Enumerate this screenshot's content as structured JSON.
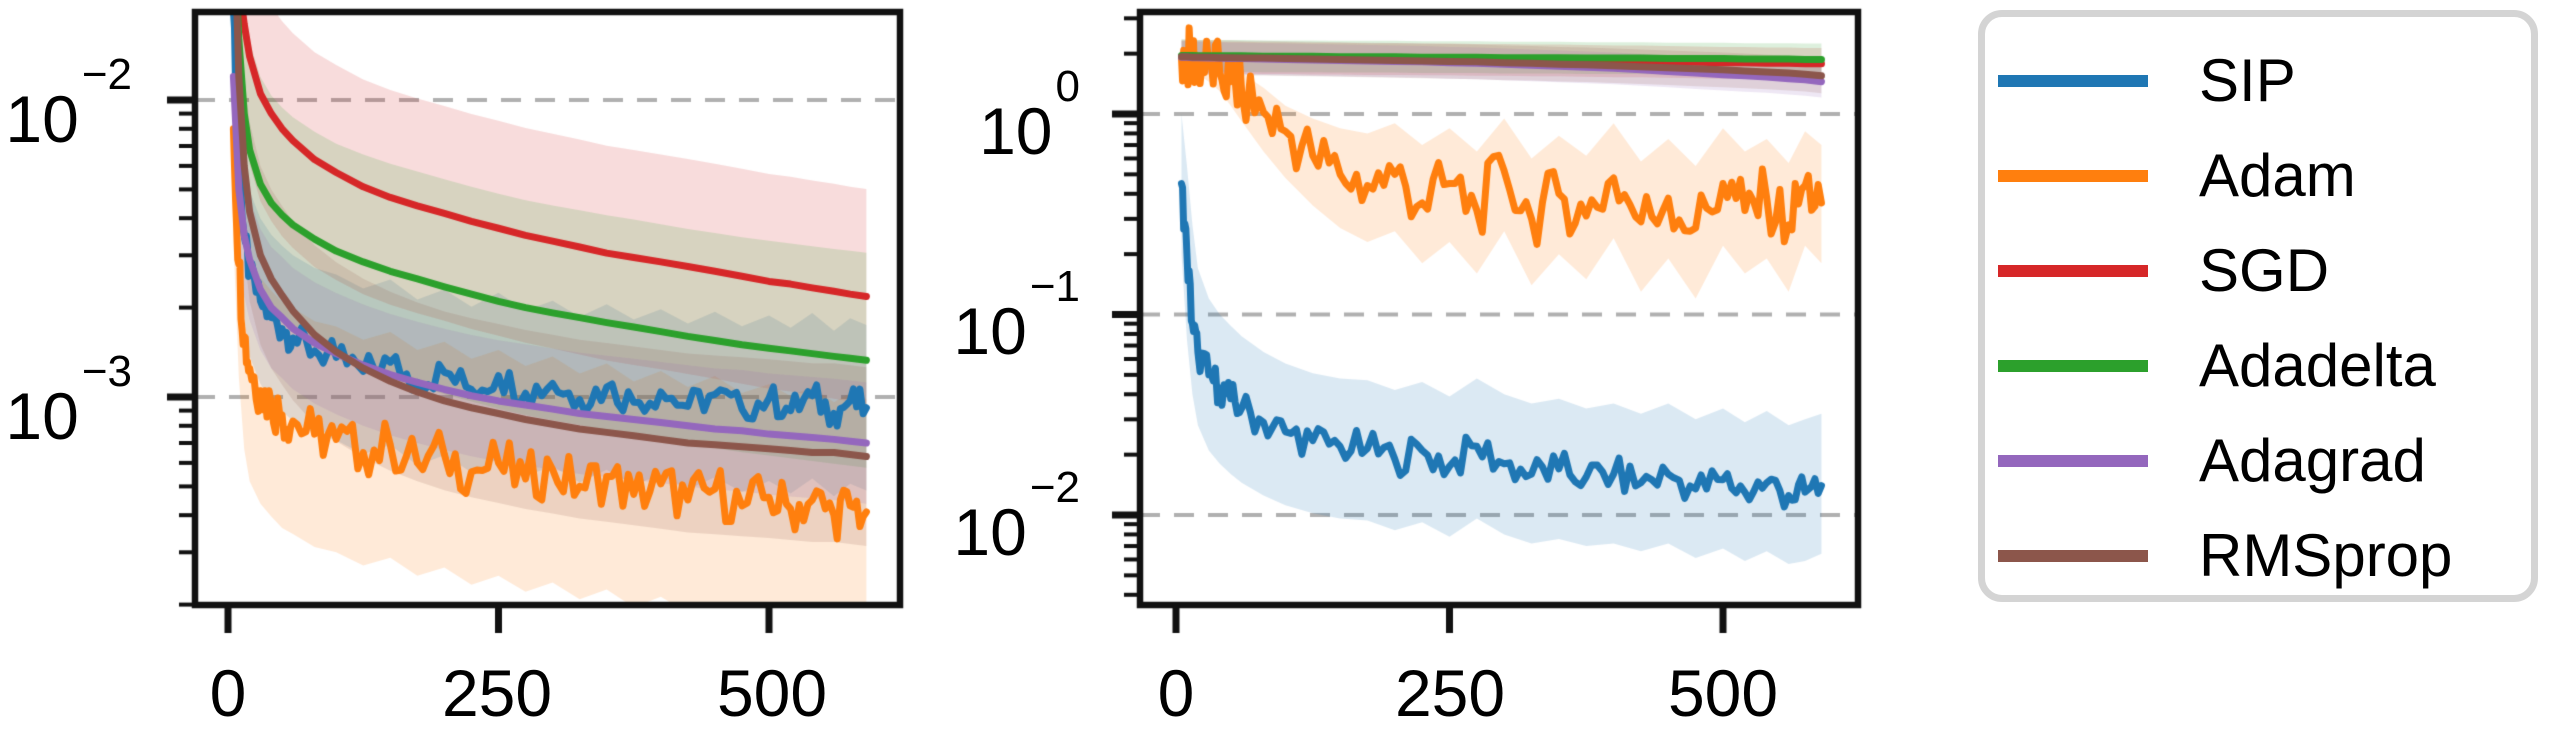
{
  "figure": {
    "background": "#ffffff",
    "grid_color": "#b0b0b0",
    "spine_color": "#111111",
    "text_color": "#000000"
  },
  "chart_data": {
    "type": "line",
    "layout": "two-log-subplots-with-shared-legend",
    "legend": {
      "position": "right",
      "entries": [
        {
          "label": "SIP",
          "color": "#1f77b4"
        },
        {
          "label": "Adam",
          "color": "#ff7f0e"
        },
        {
          "label": "SGD",
          "color": "#d62728"
        },
        {
          "label": "Adadelta",
          "color": "#2ca02c"
        },
        {
          "label": "Adagrad",
          "color": "#9467bd"
        },
        {
          "label": "RMSprop",
          "color": "#8c564b"
        }
      ]
    },
    "plots": [
      {
        "id": "left",
        "yscale": "log",
        "xlabel": "",
        "ylabel": "",
        "xlim": [
          -30,
          617
        ],
        "ylim": [
          0.0002,
          0.0198
        ],
        "grid": "horizontal-dashed-at-decades",
        "xticks": [
          {
            "label": "0",
            "value": 0
          },
          {
            "label": "250",
            "value": 250
          },
          {
            "label": "500",
            "value": 500
          }
        ],
        "yticks": [
          {
            "base": "10",
            "exp": "−2",
            "value": 0.01
          },
          {
            "base": "10",
            "exp": "−3",
            "value": 0.001
          }
        ],
        "x": [
          5,
          10,
          15,
          20,
          30,
          40,
          50,
          60,
          80,
          100,
          125,
          150,
          175,
          200,
          225,
          250,
          275,
          300,
          325,
          350,
          375,
          400,
          425,
          450,
          475,
          500,
          520,
          540,
          560,
          575,
          590
        ],
        "series": [
          {
            "name": "SIP",
            "color": "#1f77b4",
            "band_factor": 1.9,
            "noise": 0.06,
            "values": [
              0.02,
              0.006,
              0.0035,
              0.0026,
              0.0021,
              0.00185,
              0.0017,
              0.00158,
              0.00143,
              0.00136,
              0.00122,
              0.00131,
              0.00112,
              0.00121,
              0.00106,
              0.00118,
              0.00103,
              0.00111,
              0.00098,
              0.00108,
              0.00096,
              0.00104,
              0.00093,
              0.00102,
              0.00091,
              0.00099,
              0.0009,
              0.00101,
              0.00088,
              0.00097,
              0.00092
            ]
          },
          {
            "name": "Adam",
            "color": "#ff7f0e",
            "band_factor": 2.4,
            "noise": 0.1,
            "values": [
              0.008,
              0.0028,
              0.0016,
              0.00125,
              0.00105,
              0.00095,
              0.00087,
              0.00083,
              0.00075,
              0.00072,
              0.00065,
              0.00069,
              0.0006,
              0.00064,
              0.00056,
              0.0006,
              0.00053,
              0.00057,
              0.0005,
              0.00054,
              0.00047,
              0.00051,
              0.00045,
              0.00049,
              0.00043,
              0.00046,
              0.00042,
              0.00045,
              0.0004,
              0.00043,
              0.00041
            ]
          },
          {
            "name": "SGD",
            "color": "#d62728",
            "band_factor": 2.3,
            "noise": 0,
            "values": [
              0.05,
              0.025,
              0.018,
              0.014,
              0.0105,
              0.009,
              0.008,
              0.0073,
              0.0063,
              0.0057,
              0.0051,
              0.0047,
              0.0044,
              0.00415,
              0.0039,
              0.0037,
              0.0035,
              0.00335,
              0.0032,
              0.00305,
              0.00295,
              0.00285,
              0.00275,
              0.00265,
              0.00255,
              0.00245,
              0.0024,
              0.00233,
              0.00227,
              0.00222,
              0.00218
            ]
          },
          {
            "name": "Adadelta",
            "color": "#2ca02c",
            "band_factor": 2.3,
            "noise": 0,
            "values": [
              0.04,
              0.016,
              0.009,
              0.0068,
              0.0052,
              0.0045,
              0.0041,
              0.0038,
              0.0034,
              0.0031,
              0.00285,
              0.00265,
              0.0025,
              0.00235,
              0.00222,
              0.0021,
              0.002,
              0.00192,
              0.00185,
              0.00178,
              0.00172,
              0.00166,
              0.0016,
              0.00155,
              0.0015,
              0.00146,
              0.00143,
              0.0014,
              0.00137,
              0.00135,
              0.00133
            ]
          },
          {
            "name": "Adagrad",
            "color": "#9467bd",
            "band_factor": 1.6,
            "noise": 0,
            "values": [
              0.012,
              0.005,
              0.0035,
              0.0029,
              0.0023,
              0.002,
              0.00185,
              0.0017,
              0.00152,
              0.0014,
              0.00128,
              0.00119,
              0.00112,
              0.00106,
              0.00101,
              0.00097,
              0.00094,
              0.00091,
              0.00088,
              0.00086,
              0.00084,
              0.00082,
              0.0008,
              0.00078,
              0.00077,
              0.00075,
              0.00074,
              0.00073,
              0.00072,
              0.00071,
              0.0007
            ]
          },
          {
            "name": "RMSprop",
            "color": "#8c564b",
            "band_factor": 2.0,
            "noise": 0,
            "values": [
              0.05,
              0.012,
              0.006,
              0.0042,
              0.003,
              0.0025,
              0.0022,
              0.00195,
              0.00162,
              0.00142,
              0.00125,
              0.00113,
              0.00104,
              0.00097,
              0.00092,
              0.00088,
              0.00084,
              0.00081,
              0.00078,
              0.00076,
              0.00074,
              0.00072,
              0.0007,
              0.00069,
              0.00068,
              0.00067,
              0.00066,
              0.00065,
              0.00065,
              0.00064,
              0.00063
            ]
          }
        ]
      },
      {
        "id": "right",
        "yscale": "log",
        "xlabel": "",
        "ylabel": "",
        "xlim": [
          -33,
          623
        ],
        "ylim": [
          0.00356,
          3.23
        ],
        "grid": "horizontal-dashed-at-decades",
        "xticks": [
          {
            "label": "0",
            "value": 0
          },
          {
            "label": "250",
            "value": 250
          },
          {
            "label": "500",
            "value": 500
          }
        ],
        "yticks": [
          {
            "base": "10",
            "exp": "0",
            "value": 1
          },
          {
            "base": "10",
            "exp": "−1",
            "value": 0.1
          },
          {
            "base": "10",
            "exp": "−2",
            "value": 0.01
          }
        ],
        "x": [
          5,
          10,
          15,
          20,
          30,
          40,
          50,
          60,
          80,
          100,
          125,
          150,
          175,
          200,
          225,
          250,
          275,
          300,
          325,
          350,
          375,
          400,
          425,
          450,
          475,
          500,
          520,
          540,
          560,
          575,
          590
        ],
        "series": [
          {
            "name": "SIP",
            "color": "#1f77b4",
            "noise": 0.1,
            "values": [
              0.45,
              0.2,
              0.09,
              0.065,
              0.05,
              0.043,
              0.038,
              0.034,
              0.029,
              0.026,
              0.0235,
              0.022,
              0.0215,
              0.019,
              0.021,
              0.0175,
              0.022,
              0.018,
              0.016,
              0.017,
              0.0155,
              0.016,
              0.0145,
              0.016,
              0.0135,
              0.015,
              0.013,
              0.0145,
              0.0125,
              0.013,
              0.014
            ],
            "band_hi": [
              1.0,
              0.55,
              0.28,
              0.17,
              0.12,
              0.1,
              0.088,
              0.078,
              0.065,
              0.057,
              0.051,
              0.048,
              0.047,
              0.042,
              0.046,
              0.039,
              0.048,
              0.04,
              0.036,
              0.038,
              0.034,
              0.036,
              0.032,
              0.036,
              0.03,
              0.034,
              0.029,
              0.033,
              0.028,
              0.03,
              0.032
            ],
            "band_lo": [
              0.2,
              0.075,
              0.04,
              0.028,
              0.021,
              0.018,
              0.016,
              0.0145,
              0.0125,
              0.0112,
              0.0102,
              0.0096,
              0.0094,
              0.0084,
              0.0092,
              0.0078,
              0.0096,
              0.008,
              0.0072,
              0.0076,
              0.007,
              0.0072,
              0.0066,
              0.0072,
              0.0061,
              0.0068,
              0.0059,
              0.0066,
              0.0057,
              0.0059,
              0.0064
            ]
          },
          {
            "name": "Adam",
            "color": "#ff7f0e",
            "noise": 0.18,
            "values": [
              1.92,
              1.9,
              1.87,
              1.83,
              1.73,
              1.6,
              1.45,
              1.3,
              1.02,
              0.82,
              0.62,
              0.5,
              0.44,
              0.5,
              0.36,
              0.45,
              0.33,
              0.52,
              0.3,
              0.4,
              0.31,
              0.48,
              0.29,
              0.38,
              0.27,
              0.45,
              0.33,
              0.38,
              0.28,
              0.44,
              0.36
            ],
            "band_hi": [
              2.15,
              2.12,
              2.1,
              2.05,
              1.95,
              1.85,
              1.75,
              1.6,
              1.35,
              1.1,
              0.95,
              0.85,
              0.8,
              0.9,
              0.7,
              0.85,
              0.65,
              0.95,
              0.6,
              0.78,
              0.62,
              0.9,
              0.58,
              0.75,
              0.55,
              0.85,
              0.65,
              0.75,
              0.57,
              0.82,
              0.7
            ],
            "band_lo": [
              1.7,
              1.68,
              1.63,
              1.58,
              1.45,
              1.3,
              1.1,
              0.92,
              0.65,
              0.48,
              0.35,
              0.27,
              0.23,
              0.26,
              0.18,
              0.23,
              0.16,
              0.26,
              0.14,
              0.2,
              0.15,
              0.24,
              0.13,
              0.19,
              0.12,
              0.22,
              0.16,
              0.19,
              0.13,
              0.22,
              0.18
            ]
          },
          {
            "name": "SGD",
            "color": "#d62728",
            "band_factor": 1.2,
            "noise": 0,
            "values": [
              1.93,
              1.93,
              1.92,
              1.92,
              1.92,
              1.91,
              1.91,
              1.91,
              1.9,
              1.9,
              1.89,
              1.89,
              1.88,
              1.88,
              1.87,
              1.87,
              1.86,
              1.86,
              1.85,
              1.85,
              1.84,
              1.83,
              1.83,
              1.82,
              1.81,
              1.8,
              1.8,
              1.79,
              1.79,
              1.78,
              1.78
            ]
          },
          {
            "name": "Adadelta",
            "color": "#2ca02c",
            "band_factor": 1.2,
            "noise": 0,
            "values": [
              1.96,
              1.96,
              1.96,
              1.95,
              1.95,
              1.95,
              1.95,
              1.95,
              1.94,
              1.94,
              1.94,
              1.93,
              1.93,
              1.93,
              1.92,
              1.92,
              1.92,
              1.91,
              1.91,
              1.91,
              1.9,
              1.9,
              1.9,
              1.89,
              1.89,
              1.89,
              1.88,
              1.88,
              1.88,
              1.87,
              1.87
            ]
          },
          {
            "name": "Adagrad",
            "color": "#9467bd",
            "band_factor": 1.2,
            "noise": 0,
            "values": [
              1.92,
              1.92,
              1.91,
              1.91,
              1.9,
              1.9,
              1.89,
              1.89,
              1.88,
              1.87,
              1.86,
              1.85,
              1.84,
              1.83,
              1.82,
              1.8,
              1.79,
              1.77,
              1.75,
              1.73,
              1.71,
              1.69,
              1.66,
              1.63,
              1.6,
              1.57,
              1.55,
              1.53,
              1.5,
              1.48,
              1.45
            ]
          },
          {
            "name": "RMSprop",
            "color": "#8c564b",
            "band_factor": 1.22,
            "noise": 0,
            "values": [
              1.93,
              1.93,
              1.92,
              1.92,
              1.92,
              1.91,
              1.91,
              1.9,
              1.9,
              1.89,
              1.88,
              1.87,
              1.86,
              1.85,
              1.84,
              1.83,
              1.82,
              1.8,
              1.79,
              1.77,
              1.76,
              1.74,
              1.72,
              1.7,
              1.68,
              1.66,
              1.64,
              1.62,
              1.6,
              1.58,
              1.55
            ]
          }
        ]
      }
    ]
  }
}
